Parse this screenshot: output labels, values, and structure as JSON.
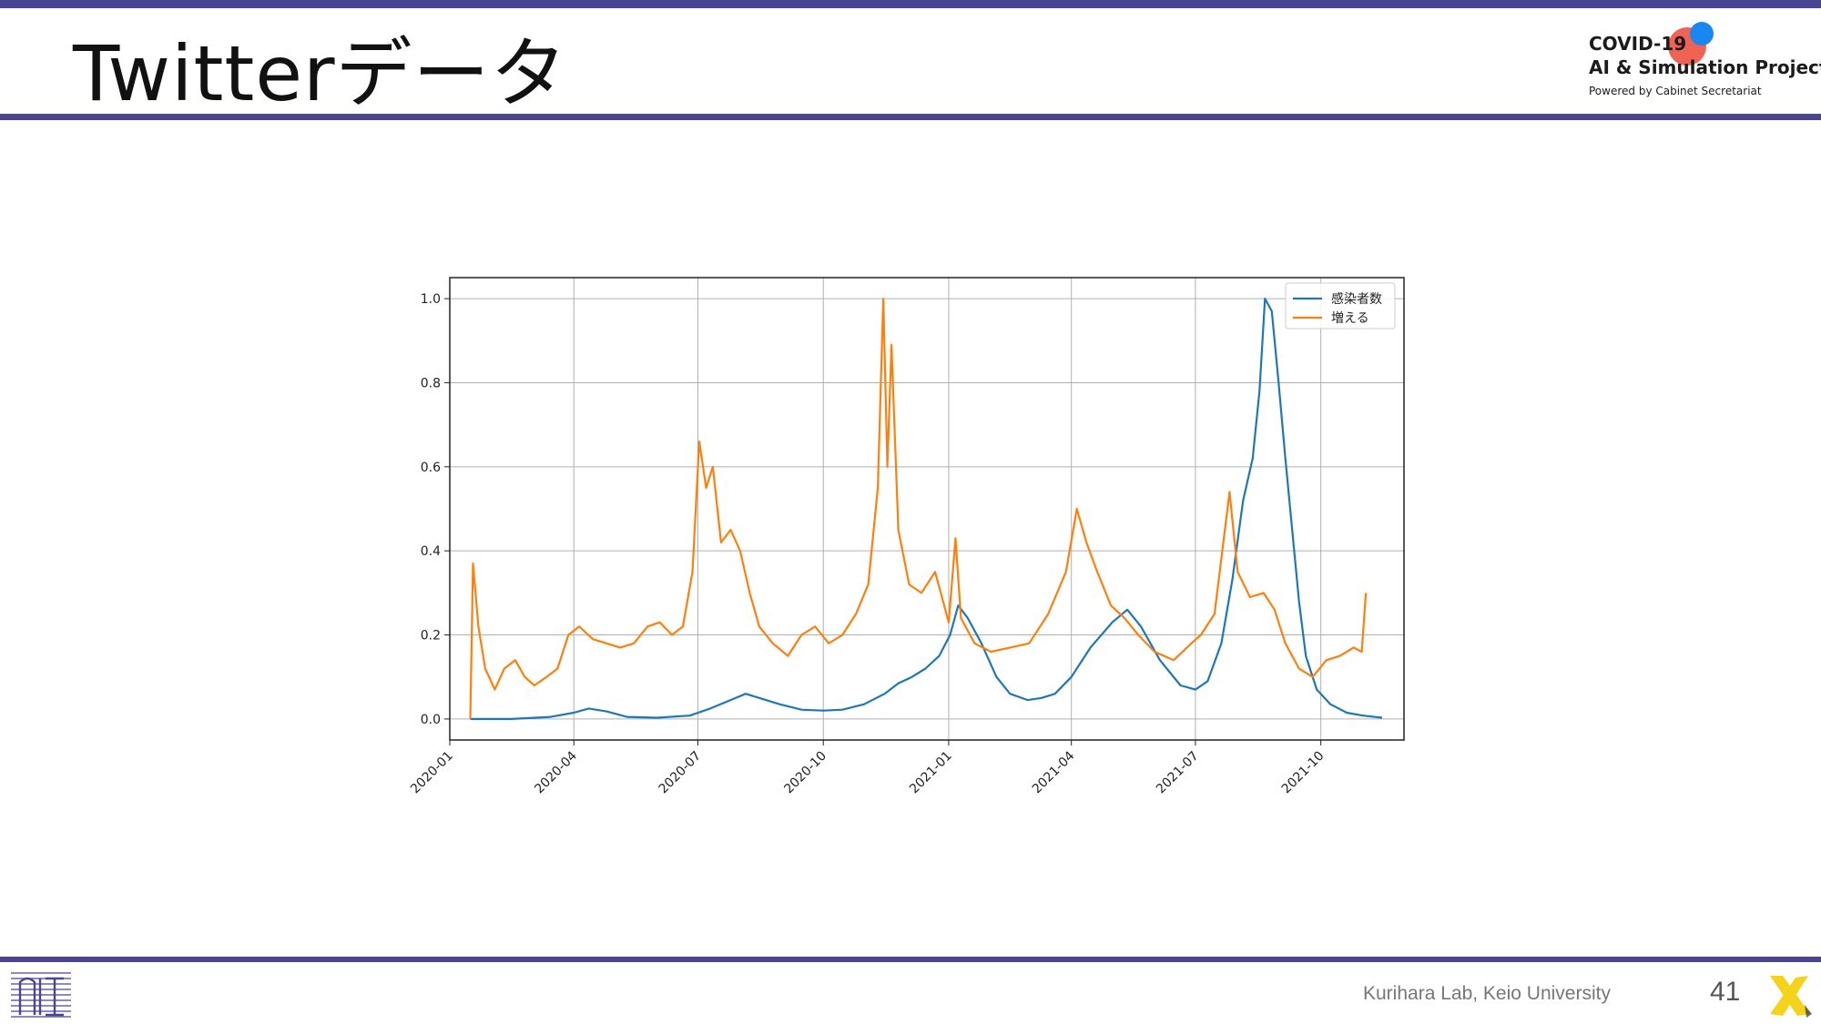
{
  "slide": {
    "title": "Twitterデータ",
    "page_number": "41",
    "credit": "Kurihara Lab, Keio University"
  },
  "logo": {
    "line1": "COVID-19",
    "line2": "AI & Simulation Project",
    "line3": "Powered by Cabinet Secretariat"
  },
  "colors": {
    "accent_bar": "#4a4592",
    "series_infections": "#1f77b4",
    "series_increase": "#ff7f0e"
  },
  "chart_data": {
    "type": "line",
    "x_type": "date",
    "xlim": [
      "2020-01-01",
      "2021-12-01"
    ],
    "ylim": [
      -0.05,
      1.05
    ],
    "x_ticks": [
      "2020-01",
      "2020-04",
      "2020-07",
      "2020-10",
      "2021-01",
      "2021-04",
      "2021-07",
      "2021-10"
    ],
    "y_ticks": [
      "0.0",
      "0.2",
      "0.4",
      "0.6",
      "0.8",
      "1.0"
    ],
    "grid": true,
    "legend_position": "top-right",
    "series": [
      {
        "name": "感染者数",
        "color": "#1f77b4",
        "points": [
          [
            "2020-01-16",
            0.0
          ],
          [
            "2020-02-15",
            0.0
          ],
          [
            "2020-03-15",
            0.005
          ],
          [
            "2020-04-01",
            0.015
          ],
          [
            "2020-04-12",
            0.025
          ],
          [
            "2020-04-25",
            0.018
          ],
          [
            "2020-05-10",
            0.005
          ],
          [
            "2020-06-01",
            0.003
          ],
          [
            "2020-06-25",
            0.008
          ],
          [
            "2020-07-10",
            0.025
          ],
          [
            "2020-07-25",
            0.045
          ],
          [
            "2020-08-05",
            0.06
          ],
          [
            "2020-08-15",
            0.05
          ],
          [
            "2020-08-30",
            0.035
          ],
          [
            "2020-09-15",
            0.022
          ],
          [
            "2020-10-01",
            0.02
          ],
          [
            "2020-10-15",
            0.022
          ],
          [
            "2020-10-31",
            0.035
          ],
          [
            "2020-11-15",
            0.06
          ],
          [
            "2020-11-25",
            0.085
          ],
          [
            "2020-12-05",
            0.1
          ],
          [
            "2020-12-15",
            0.12
          ],
          [
            "2020-12-25",
            0.15
          ],
          [
            "2021-01-02",
            0.2
          ],
          [
            "2021-01-08",
            0.27
          ],
          [
            "2021-01-15",
            0.24
          ],
          [
            "2021-01-25",
            0.18
          ],
          [
            "2021-02-05",
            0.1
          ],
          [
            "2021-02-15",
            0.06
          ],
          [
            "2021-02-28",
            0.045
          ],
          [
            "2021-03-10",
            0.05
          ],
          [
            "2021-03-20",
            0.06
          ],
          [
            "2021-04-01",
            0.1
          ],
          [
            "2021-04-15",
            0.17
          ],
          [
            "2021-05-01",
            0.23
          ],
          [
            "2021-05-12",
            0.26
          ],
          [
            "2021-05-22",
            0.22
          ],
          [
            "2021-06-05",
            0.14
          ],
          [
            "2021-06-20",
            0.08
          ],
          [
            "2021-07-01",
            0.07
          ],
          [
            "2021-07-10",
            0.09
          ],
          [
            "2021-07-20",
            0.18
          ],
          [
            "2021-07-28",
            0.33
          ],
          [
            "2021-08-05",
            0.52
          ],
          [
            "2021-08-12",
            0.62
          ],
          [
            "2021-08-17",
            0.78
          ],
          [
            "2021-08-21",
            1.0
          ],
          [
            "2021-08-26",
            0.97
          ],
          [
            "2021-08-31",
            0.8
          ],
          [
            "2021-09-05",
            0.62
          ],
          [
            "2021-09-10",
            0.45
          ],
          [
            "2021-09-15",
            0.28
          ],
          [
            "2021-09-20",
            0.15
          ],
          [
            "2021-09-28",
            0.07
          ],
          [
            "2021-10-08",
            0.035
          ],
          [
            "2021-10-20",
            0.015
          ],
          [
            "2021-11-01",
            0.008
          ],
          [
            "2021-11-15",
            0.003
          ]
        ]
      },
      {
        "name": "増える",
        "color": "#ff7f0e",
        "points": [
          [
            "2020-01-16",
            0.0
          ],
          [
            "2020-01-18",
            0.37
          ],
          [
            "2020-01-22",
            0.22
          ],
          [
            "2020-01-27",
            0.12
          ],
          [
            "2020-02-03",
            0.07
          ],
          [
            "2020-02-10",
            0.12
          ],
          [
            "2020-02-18",
            0.14
          ],
          [
            "2020-02-25",
            0.1
          ],
          [
            "2020-03-03",
            0.08
          ],
          [
            "2020-03-12",
            0.1
          ],
          [
            "2020-03-20",
            0.12
          ],
          [
            "2020-03-28",
            0.2
          ],
          [
            "2020-04-05",
            0.22
          ],
          [
            "2020-04-15",
            0.19
          ],
          [
            "2020-04-25",
            0.18
          ],
          [
            "2020-05-05",
            0.17
          ],
          [
            "2020-05-15",
            0.18
          ],
          [
            "2020-05-25",
            0.22
          ],
          [
            "2020-06-03",
            0.23
          ],
          [
            "2020-06-12",
            0.2
          ],
          [
            "2020-06-20",
            0.22
          ],
          [
            "2020-06-27",
            0.35
          ],
          [
            "2020-07-02",
            0.66
          ],
          [
            "2020-07-07",
            0.55
          ],
          [
            "2020-07-12",
            0.6
          ],
          [
            "2020-07-18",
            0.42
          ],
          [
            "2020-07-25",
            0.45
          ],
          [
            "2020-08-01",
            0.4
          ],
          [
            "2020-08-08",
            0.3
          ],
          [
            "2020-08-15",
            0.22
          ],
          [
            "2020-08-25",
            0.18
          ],
          [
            "2020-09-05",
            0.15
          ],
          [
            "2020-09-15",
            0.2
          ],
          [
            "2020-09-25",
            0.22
          ],
          [
            "2020-10-05",
            0.18
          ],
          [
            "2020-10-15",
            0.2
          ],
          [
            "2020-10-25",
            0.25
          ],
          [
            "2020-11-03",
            0.32
          ],
          [
            "2020-11-10",
            0.55
          ],
          [
            "2020-11-14",
            1.0
          ],
          [
            "2020-11-17",
            0.6
          ],
          [
            "2020-11-20",
            0.89
          ],
          [
            "2020-11-25",
            0.45
          ],
          [
            "2020-12-03",
            0.32
          ],
          [
            "2020-12-12",
            0.3
          ],
          [
            "2020-12-22",
            0.35
          ],
          [
            "2021-01-01",
            0.23
          ],
          [
            "2021-01-06",
            0.43
          ],
          [
            "2021-01-10",
            0.24
          ],
          [
            "2021-01-20",
            0.18
          ],
          [
            "2021-02-01",
            0.16
          ],
          [
            "2021-02-15",
            0.17
          ],
          [
            "2021-03-01",
            0.18
          ],
          [
            "2021-03-15",
            0.25
          ],
          [
            "2021-03-28",
            0.35
          ],
          [
            "2021-04-05",
            0.5
          ],
          [
            "2021-04-12",
            0.42
          ],
          [
            "2021-04-20",
            0.35
          ],
          [
            "2021-04-30",
            0.27
          ],
          [
            "2021-05-10",
            0.24
          ],
          [
            "2021-05-20",
            0.2
          ],
          [
            "2021-06-01",
            0.16
          ],
          [
            "2021-06-15",
            0.14
          ],
          [
            "2021-06-28",
            0.18
          ],
          [
            "2021-07-05",
            0.2
          ],
          [
            "2021-07-15",
            0.25
          ],
          [
            "2021-07-26",
            0.54
          ],
          [
            "2021-08-01",
            0.35
          ],
          [
            "2021-08-10",
            0.29
          ],
          [
            "2021-08-20",
            0.3
          ],
          [
            "2021-08-28",
            0.26
          ],
          [
            "2021-09-05",
            0.18
          ],
          [
            "2021-09-15",
            0.12
          ],
          [
            "2021-09-25",
            0.1
          ],
          [
            "2021-10-05",
            0.14
          ],
          [
            "2021-10-15",
            0.15
          ],
          [
            "2021-10-25",
            0.17
          ],
          [
            "2021-10-31",
            0.16
          ],
          [
            "2021-11-03",
            0.3
          ]
        ]
      }
    ]
  }
}
